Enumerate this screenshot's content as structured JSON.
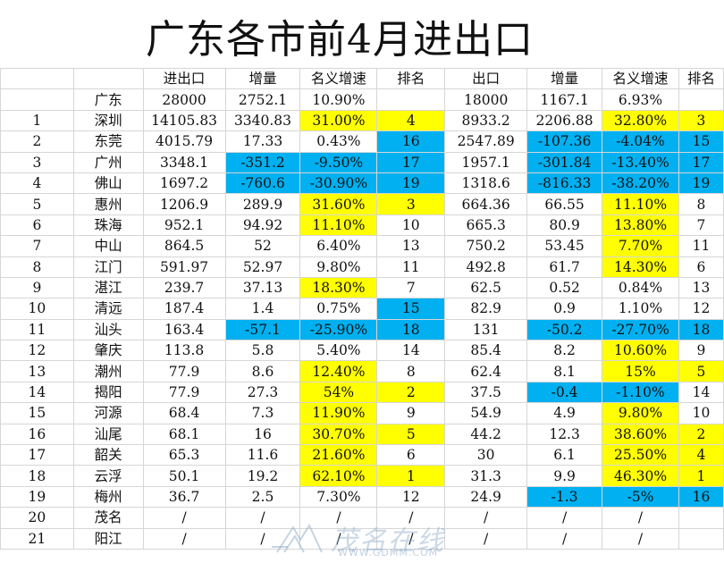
{
  "title": "广东各市前4月进出口",
  "headers": [
    "",
    "",
    "进出口",
    "增量",
    "名义增速",
    "排名",
    "出口",
    "增量",
    "名义增速",
    "排名"
  ],
  "colors": {
    "yellow": "#ffff00",
    "blue": "#00b0f0"
  },
  "rows": [
    {
      "cells": [
        "",
        "广东",
        "28000",
        "2752.1",
        "10.90%",
        "",
        "18000",
        "1167.1",
        "6.93%",
        ""
      ],
      "hl": [
        "",
        "",
        "",
        "",
        "",
        "",
        "",
        "",
        "",
        ""
      ]
    },
    {
      "cells": [
        "1",
        "深圳",
        "14105.83",
        "3340.83",
        "31.00%",
        "4",
        "8933.2",
        "2206.88",
        "32.80%",
        "3"
      ],
      "hl": [
        "",
        "",
        "",
        "",
        "y",
        "y",
        "",
        "",
        "y",
        "y"
      ]
    },
    {
      "cells": [
        "2",
        "东莞",
        "4015.79",
        "17.33",
        "0.43%",
        "16",
        "2547.89",
        "-107.36",
        "-4.04%",
        "15"
      ],
      "hl": [
        "",
        "",
        "",
        "",
        "",
        "b",
        "",
        "b",
        "b",
        "b"
      ]
    },
    {
      "cells": [
        "3",
        "广州",
        "3348.1",
        "-351.2",
        "-9.50%",
        "17",
        "1957.1",
        "-301.84",
        "-13.40%",
        "17"
      ],
      "hl": [
        "",
        "",
        "",
        "b",
        "b",
        "b",
        "",
        "b",
        "b",
        "b"
      ]
    },
    {
      "cells": [
        "4",
        "佛山",
        "1697.2",
        "-760.6",
        "-30.90%",
        "19",
        "1318.6",
        "-816.33",
        "-38.20%",
        "19"
      ],
      "hl": [
        "",
        "",
        "",
        "b",
        "b",
        "b",
        "",
        "b",
        "b",
        "b"
      ]
    },
    {
      "cells": [
        "5",
        "惠州",
        "1206.9",
        "289.9",
        "31.60%",
        "3",
        "664.36",
        "66.55",
        "11.10%",
        "8"
      ],
      "hl": [
        "",
        "",
        "",
        "",
        "y",
        "y",
        "",
        "",
        "y",
        ""
      ]
    },
    {
      "cells": [
        "6",
        "珠海",
        "952.1",
        "94.92",
        "11.10%",
        "10",
        "665.3",
        "80.9",
        "13.80%",
        "7"
      ],
      "hl": [
        "",
        "",
        "",
        "",
        "y",
        "",
        "",
        "",
        "y",
        ""
      ]
    },
    {
      "cells": [
        "7",
        "中山",
        "864.5",
        "52",
        "6.40%",
        "13",
        "750.2",
        "53.45",
        "7.70%",
        "11"
      ],
      "hl": [
        "",
        "",
        "",
        "",
        "",
        "",
        "",
        "",
        "y",
        ""
      ]
    },
    {
      "cells": [
        "8",
        "江门",
        "591.97",
        "52.97",
        "9.80%",
        "11",
        "492.8",
        "61.7",
        "14.30%",
        "6"
      ],
      "hl": [
        "",
        "",
        "",
        "",
        "",
        "",
        "",
        "",
        "y",
        ""
      ]
    },
    {
      "cells": [
        "9",
        "湛江",
        "239.7",
        "37.13",
        "18.30%",
        "7",
        "62.5",
        "0.52",
        "0.84%",
        "13"
      ],
      "hl": [
        "",
        "",
        "",
        "",
        "y",
        "",
        "",
        "",
        "",
        ""
      ]
    },
    {
      "cells": [
        "10",
        "清远",
        "187.4",
        "1.4",
        "0.75%",
        "15",
        "82.9",
        "0.9",
        "1.10%",
        "12"
      ],
      "hl": [
        "",
        "",
        "",
        "",
        "",
        "b",
        "",
        "",
        "",
        ""
      ]
    },
    {
      "cells": [
        "11",
        "汕头",
        "163.4",
        "-57.1",
        "-25.90%",
        "18",
        "131",
        "-50.2",
        "-27.70%",
        "18"
      ],
      "hl": [
        "",
        "",
        "",
        "b",
        "b",
        "b",
        "",
        "b",
        "b",
        "b"
      ]
    },
    {
      "cells": [
        "12",
        "肇庆",
        "113.8",
        "5.8",
        "5.40%",
        "14",
        "85.4",
        "8.2",
        "10.60%",
        "9"
      ],
      "hl": [
        "",
        "",
        "",
        "",
        "",
        "",
        "",
        "",
        "y",
        ""
      ]
    },
    {
      "cells": [
        "13",
        "潮州",
        "77.9",
        "8.6",
        "12.40%",
        "8",
        "62.4",
        "8.1",
        "15%",
        "5"
      ],
      "hl": [
        "",
        "",
        "",
        "",
        "y",
        "",
        "",
        "",
        "y",
        "y"
      ]
    },
    {
      "cells": [
        "14",
        "揭阳",
        "77.9",
        "27.3",
        "54%",
        "2",
        "37.5",
        "-0.4",
        "-1.10%",
        "14"
      ],
      "hl": [
        "",
        "",
        "",
        "",
        "y",
        "y",
        "",
        "b",
        "b",
        ""
      ]
    },
    {
      "cells": [
        "15",
        "河源",
        "68.4",
        "7.3",
        "11.90%",
        "9",
        "54.9",
        "4.9",
        "9.80%",
        "10"
      ],
      "hl": [
        "",
        "",
        "",
        "",
        "y",
        "",
        "",
        "",
        "y",
        ""
      ]
    },
    {
      "cells": [
        "16",
        "汕尾",
        "68.1",
        "16",
        "30.70%",
        "5",
        "44.2",
        "12.3",
        "38.60%",
        "2"
      ],
      "hl": [
        "",
        "",
        "",
        "",
        "y",
        "y",
        "",
        "",
        "y",
        "y"
      ]
    },
    {
      "cells": [
        "17",
        "韶关",
        "65.3",
        "11.6",
        "21.60%",
        "6",
        "30",
        "6.1",
        "25.50%",
        "4"
      ],
      "hl": [
        "",
        "",
        "",
        "",
        "y",
        "",
        "",
        "",
        "y",
        "y"
      ]
    },
    {
      "cells": [
        "18",
        "云浮",
        "50.1",
        "19.2",
        "62.10%",
        "1",
        "31.3",
        "9.9",
        "46.30%",
        "1"
      ],
      "hl": [
        "",
        "",
        "",
        "",
        "y",
        "y",
        "",
        "",
        "y",
        "y"
      ]
    },
    {
      "cells": [
        "19",
        "梅州",
        "36.7",
        "2.5",
        "7.30%",
        "12",
        "24.9",
        "-1.3",
        "-5%",
        "16"
      ],
      "hl": [
        "",
        "",
        "",
        "",
        "",
        "",
        "",
        "b",
        "b",
        "b"
      ]
    },
    {
      "cells": [
        "20",
        "茂名",
        "/",
        "/",
        "/",
        "/",
        "/",
        "/",
        "/",
        ""
      ],
      "hl": [
        "",
        "",
        "",
        "",
        "",
        "",
        "",
        "",
        "",
        ""
      ]
    },
    {
      "cells": [
        "21",
        "阳江",
        "/",
        "/",
        "/",
        "/",
        "/",
        "/",
        "/",
        ""
      ],
      "hl": [
        "",
        "",
        "",
        "",
        "",
        "",
        "",
        "",
        "",
        ""
      ]
    }
  ],
  "watermark": {
    "text": "茂名在线",
    "url": "WWW.GDMM.COM"
  }
}
